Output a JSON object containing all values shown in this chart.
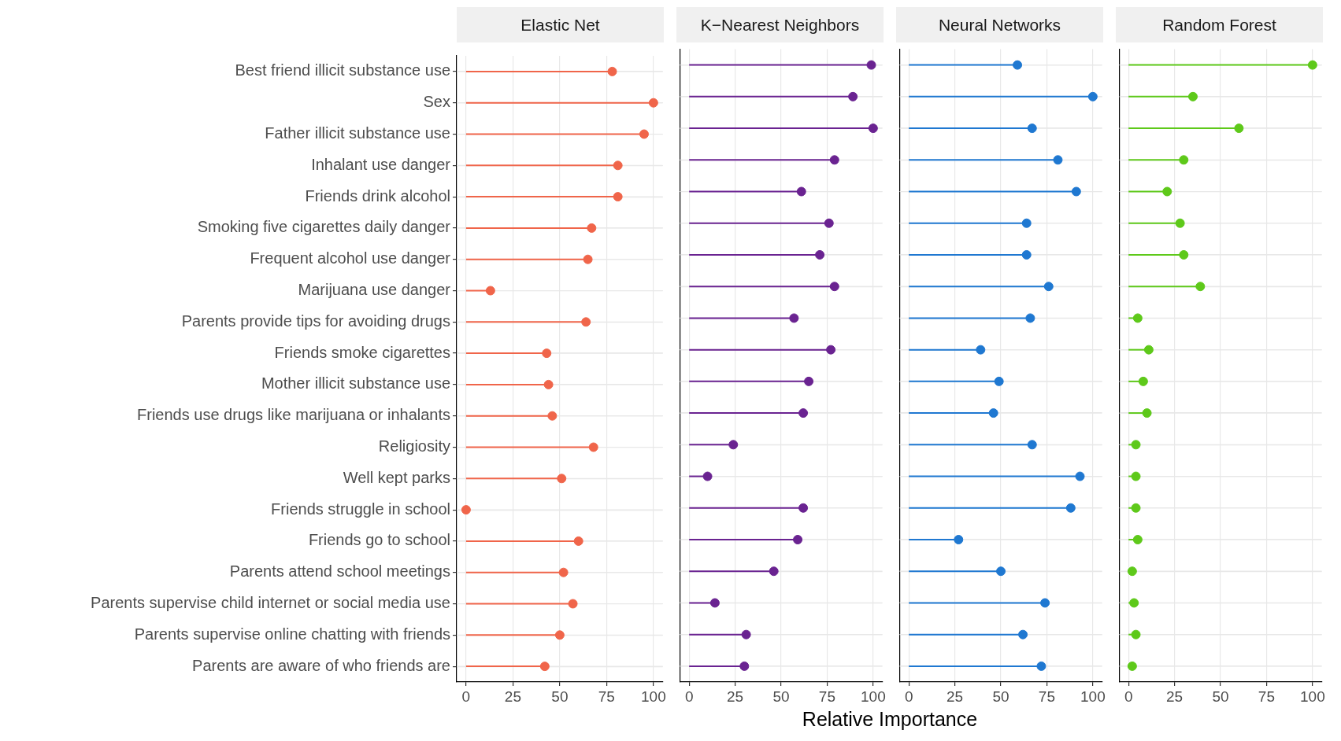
{
  "chart_data": [
    {
      "type": "lollipop",
      "title": "Elastic Net",
      "orientation": "horizontal",
      "marker": "circle",
      "grid": true,
      "legend": false,
      "color": "#f0654a",
      "xlim": [
        -5,
        105
      ],
      "xticks": [
        0,
        25,
        50,
        75,
        100
      ],
      "categories": [
        "Best friend illicit substance use",
        "Sex",
        "Father illicit substance use",
        "Inhalant use danger",
        "Friends drink alcohol",
        "Smoking five cigarettes daily danger",
        "Frequent alcohol use danger",
        "Marijuana use danger",
        "Parents provide tips for avoiding drugs",
        "Friends smoke cigarettes",
        "Mother illicit substance use",
        "Friends use drugs like marijuana or inhalants",
        "Religiosity",
        "Well kept parks",
        "Friends struggle in school",
        "Friends go to school",
        "Parents attend school meetings",
        "Parents supervise child internet or social media use",
        "Parents supervise online chatting with friends",
        "Parents are aware of who friends are"
      ],
      "values": [
        78,
        100,
        95,
        81,
        81,
        67,
        65,
        13,
        64,
        43,
        44,
        46,
        68,
        51,
        0,
        60,
        52,
        57,
        50,
        42
      ]
    },
    {
      "type": "lollipop",
      "title": "K−Nearest Neighbors",
      "xlabel": "Relative Importance",
      "orientation": "horizontal",
      "marker": "circle",
      "grid": true,
      "legend": false,
      "tick_labels": "x",
      "color": "#6a2391",
      "xlim": [
        -5,
        105
      ],
      "xticks": [
        0,
        25,
        50,
        75,
        100
      ],
      "categories": [
        null,
        null,
        null,
        null,
        null,
        null,
        null,
        null,
        null,
        null,
        null,
        null,
        null,
        null,
        null,
        null,
        null,
        null,
        null,
        null
      ],
      "values": [
        99,
        89,
        100,
        79,
        61,
        76,
        71,
        79,
        57,
        77,
        65,
        62,
        24,
        10,
        62,
        59,
        46,
        14,
        31,
        30
      ]
    },
    {
      "type": "lollipop",
      "title": "Neural Networks",
      "orientation": "horizontal",
      "marker": "circle",
      "grid": true,
      "legend": false,
      "tick_labels": "x",
      "color": "#1f78d1",
      "xlim": [
        -5,
        105
      ],
      "xticks": [
        0,
        25,
        50,
        75,
        100
      ],
      "categories": [
        null,
        null,
        null,
        null,
        null,
        null,
        null,
        null,
        null,
        null,
        null,
        null,
        null,
        null,
        null,
        null,
        null,
        null,
        null,
        null
      ],
      "values": [
        59,
        100,
        67,
        81,
        91,
        64,
        64,
        76,
        66,
        39,
        49,
        46,
        67,
        93,
        88,
        27,
        50,
        74,
        62,
        72
      ]
    },
    {
      "type": "lollipop",
      "title": "Random Forest",
      "orientation": "horizontal",
      "marker": "circle",
      "grid": true,
      "legend": false,
      "tick_labels": "x",
      "color": "#5ec91a",
      "xlim": [
        -5,
        105
      ],
      "xticks": [
        0,
        25,
        50,
        75,
        100
      ],
      "categories": [
        null,
        null,
        null,
        null,
        null,
        null,
        null,
        null,
        null,
        null,
        null,
        null,
        null,
        null,
        null,
        null,
        null,
        null,
        null,
        null
      ],
      "values": [
        100,
        35,
        60,
        30,
        21,
        28,
        30,
        39,
        5,
        11,
        8,
        10,
        4,
        4,
        4,
        5,
        2,
        3,
        4,
        2
      ]
    }
  ]
}
